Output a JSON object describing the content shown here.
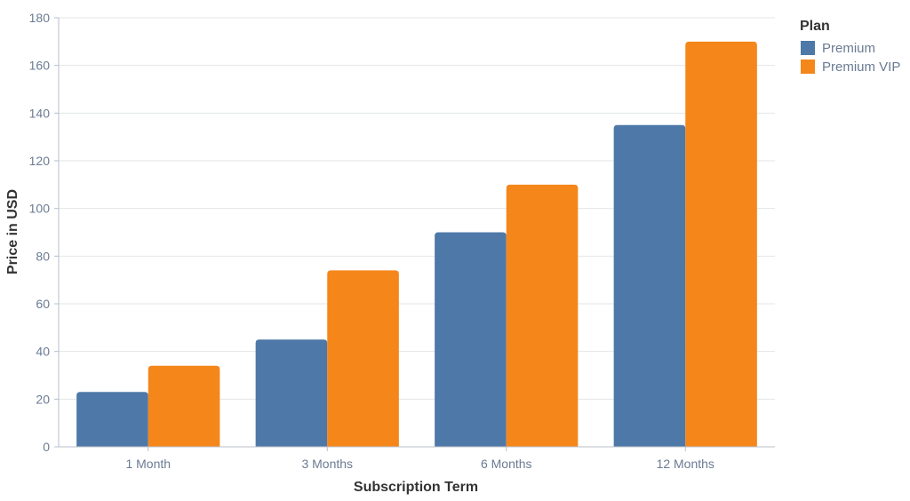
{
  "chart_data": {
    "type": "bar",
    "title": "",
    "xlabel": "Subscription Term",
    "ylabel": "Price in USD",
    "categories": [
      "1 Month",
      "3 Months",
      "6 Months",
      "12 Months"
    ],
    "series": [
      {
        "name": "Premium",
        "values": [
          23,
          45,
          90,
          135
        ],
        "color": "#4e78a8"
      },
      {
        "name": "Premium VIP",
        "values": [
          34,
          74,
          110,
          170
        ],
        "color": "#f5861a"
      }
    ],
    "ylim": [
      0,
      180
    ],
    "yticks": [
      "0",
      "20",
      "40",
      "60",
      "80",
      "100",
      "120",
      "140",
      "160",
      "180"
    ],
    "grid": true,
    "legend": {
      "title": "Plan",
      "placement": "top-right"
    }
  }
}
